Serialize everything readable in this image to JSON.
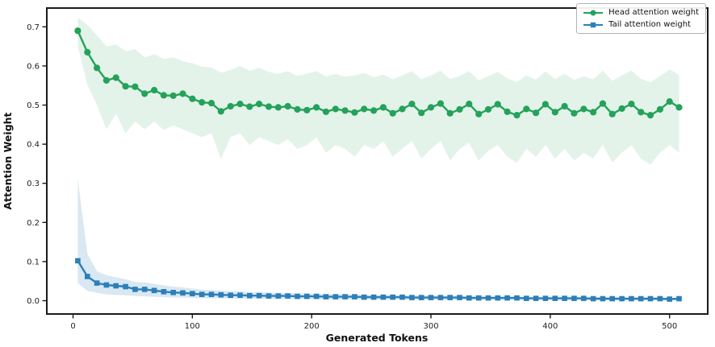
{
  "figure": {
    "background": "#ffffff"
  },
  "chart_data": {
    "type": "line",
    "title": "",
    "xlabel": "Generated Tokens",
    "ylabel": "Attention Weight",
    "grid": false,
    "legend_position": "upper right",
    "xlim": [
      -22,
      532
    ],
    "ylim": [
      -0.034,
      0.748
    ],
    "x_ticks": [
      0,
      100,
      200,
      300,
      400,
      500
    ],
    "x_tick_labels": [
      "0",
      "100",
      "200",
      "300",
      "400",
      "500"
    ],
    "y_ticks": [
      0.0,
      0.1,
      0.2,
      0.3,
      0.4,
      0.5,
      0.6,
      0.7
    ],
    "y_tick_labels": [
      "0.0",
      "0.1",
      "0.2",
      "0.3",
      "0.4",
      "0.5",
      "0.6",
      "0.7"
    ],
    "x": [
      4,
      12,
      20,
      28,
      36,
      44,
      52,
      60,
      68,
      76,
      84,
      92,
      100,
      108,
      116,
      124,
      132,
      140,
      148,
      156,
      164,
      172,
      180,
      188,
      196,
      204,
      212,
      220,
      228,
      236,
      244,
      252,
      260,
      268,
      276,
      284,
      292,
      300,
      308,
      316,
      324,
      332,
      340,
      348,
      356,
      364,
      372,
      380,
      388,
      396,
      404,
      412,
      420,
      428,
      436,
      444,
      452,
      460,
      468,
      476,
      484,
      492,
      500,
      508
    ],
    "series": [
      {
        "name": "Head attention weight",
        "color": "#24a25a",
        "marker": "circle",
        "band_opacity": 0.13,
        "values": [
          0.69,
          0.635,
          0.595,
          0.563,
          0.57,
          0.548,
          0.547,
          0.529,
          0.538,
          0.525,
          0.524,
          0.529,
          0.516,
          0.507,
          0.505,
          0.484,
          0.497,
          0.503,
          0.496,
          0.503,
          0.496,
          0.494,
          0.497,
          0.489,
          0.487,
          0.494,
          0.483,
          0.49,
          0.486,
          0.481,
          0.49,
          0.486,
          0.494,
          0.479,
          0.49,
          0.503,
          0.48,
          0.494,
          0.504,
          0.479,
          0.489,
          0.503,
          0.477,
          0.489,
          0.502,
          0.483,
          0.474,
          0.49,
          0.48,
          0.502,
          0.482,
          0.497,
          0.479,
          0.49,
          0.482,
          0.504,
          0.477,
          0.491,
          0.503,
          0.482,
          0.474,
          0.489,
          0.509,
          0.494
        ],
        "band_upper": [
          0.723,
          0.705,
          0.678,
          0.65,
          0.655,
          0.638,
          0.643,
          0.622,
          0.63,
          0.618,
          0.622,
          0.612,
          0.607,
          0.598,
          0.596,
          0.583,
          0.59,
          0.6,
          0.588,
          0.595,
          0.585,
          0.58,
          0.587,
          0.575,
          0.58,
          0.587,
          0.573,
          0.58,
          0.572,
          0.576,
          0.582,
          0.571,
          0.578,
          0.566,
          0.576,
          0.587,
          0.566,
          0.576,
          0.588,
          0.566,
          0.575,
          0.587,
          0.563,
          0.574,
          0.585,
          0.568,
          0.559,
          0.576,
          0.565,
          0.586,
          0.567,
          0.58,
          0.564,
          0.574,
          0.566,
          0.588,
          0.562,
          0.576,
          0.588,
          0.567,
          0.558,
          0.574,
          0.591,
          0.577
        ],
        "band_lower": [
          0.65,
          0.552,
          0.5,
          0.438,
          0.478,
          0.428,
          0.458,
          0.438,
          0.458,
          0.436,
          0.448,
          0.438,
          0.428,
          0.418,
          0.428,
          0.362,
          0.418,
          0.428,
          0.398,
          0.418,
          0.408,
          0.398,
          0.413,
          0.388,
          0.398,
          0.418,
          0.378,
          0.398,
          0.388,
          0.368,
          0.398,
          0.388,
          0.408,
          0.368,
          0.388,
          0.408,
          0.363,
          0.388,
          0.408,
          0.358,
          0.388,
          0.403,
          0.358,
          0.383,
          0.398,
          0.368,
          0.352,
          0.388,
          0.368,
          0.398,
          0.363,
          0.388,
          0.358,
          0.378,
          0.363,
          0.398,
          0.353,
          0.378,
          0.398,
          0.363,
          0.348,
          0.378,
          0.398,
          0.378
        ]
      },
      {
        "name": "Tail attention weight",
        "color": "#2c7fb8",
        "marker": "square",
        "band_opacity": 0.18,
        "values": [
          0.102,
          0.062,
          0.045,
          0.04,
          0.038,
          0.036,
          0.029,
          0.029,
          0.026,
          0.023,
          0.021,
          0.02,
          0.018,
          0.016,
          0.016,
          0.015,
          0.014,
          0.014,
          0.013,
          0.013,
          0.012,
          0.012,
          0.012,
          0.011,
          0.011,
          0.011,
          0.01,
          0.01,
          0.01,
          0.01,
          0.009,
          0.009,
          0.009,
          0.009,
          0.009,
          0.008,
          0.008,
          0.008,
          0.008,
          0.008,
          0.008,
          0.007,
          0.007,
          0.007,
          0.007,
          0.007,
          0.007,
          0.006,
          0.006,
          0.006,
          0.006,
          0.006,
          0.006,
          0.006,
          0.005,
          0.005,
          0.005,
          0.005,
          0.005,
          0.005,
          0.005,
          0.005,
          0.004,
          0.005
        ],
        "band_upper": [
          0.31,
          0.12,
          0.075,
          0.065,
          0.06,
          0.055,
          0.048,
          0.047,
          0.043,
          0.039,
          0.036,
          0.034,
          0.031,
          0.028,
          0.027,
          0.026,
          0.024,
          0.024,
          0.022,
          0.022,
          0.021,
          0.02,
          0.02,
          0.019,
          0.019,
          0.018,
          0.017,
          0.017,
          0.017,
          0.016,
          0.015,
          0.015,
          0.015,
          0.015,
          0.014,
          0.014,
          0.013,
          0.013,
          0.013,
          0.013,
          0.013,
          0.012,
          0.012,
          0.012,
          0.011,
          0.011,
          0.011,
          0.01,
          0.01,
          0.01,
          0.01,
          0.01,
          0.01,
          0.009,
          0.009,
          0.009,
          0.009,
          0.008,
          0.008,
          0.008,
          0.008,
          0.008,
          0.007,
          0.008
        ],
        "band_lower": [
          0.045,
          0.025,
          0.02,
          0.016,
          0.015,
          0.014,
          0.012,
          0.011,
          0.01,
          0.009,
          0.008,
          0.008,
          0.007,
          0.006,
          0.006,
          0.006,
          0.005,
          0.005,
          0.005,
          0.005,
          0.004,
          0.004,
          0.004,
          0.004,
          0.004,
          0.004,
          0.003,
          0.003,
          0.003,
          0.003,
          0.003,
          0.003,
          0.003,
          0.003,
          0.003,
          0.002,
          0.002,
          0.002,
          0.002,
          0.002,
          0.002,
          0.002,
          0.002,
          0.002,
          0.002,
          0.002,
          0.002,
          0.002,
          0.002,
          0.002,
          0.002,
          0.002,
          0.002,
          0.002,
          0.001,
          0.001,
          0.001,
          0.001,
          0.001,
          0.001,
          0.001,
          0.001,
          0.001,
          0.001
        ]
      }
    ]
  }
}
